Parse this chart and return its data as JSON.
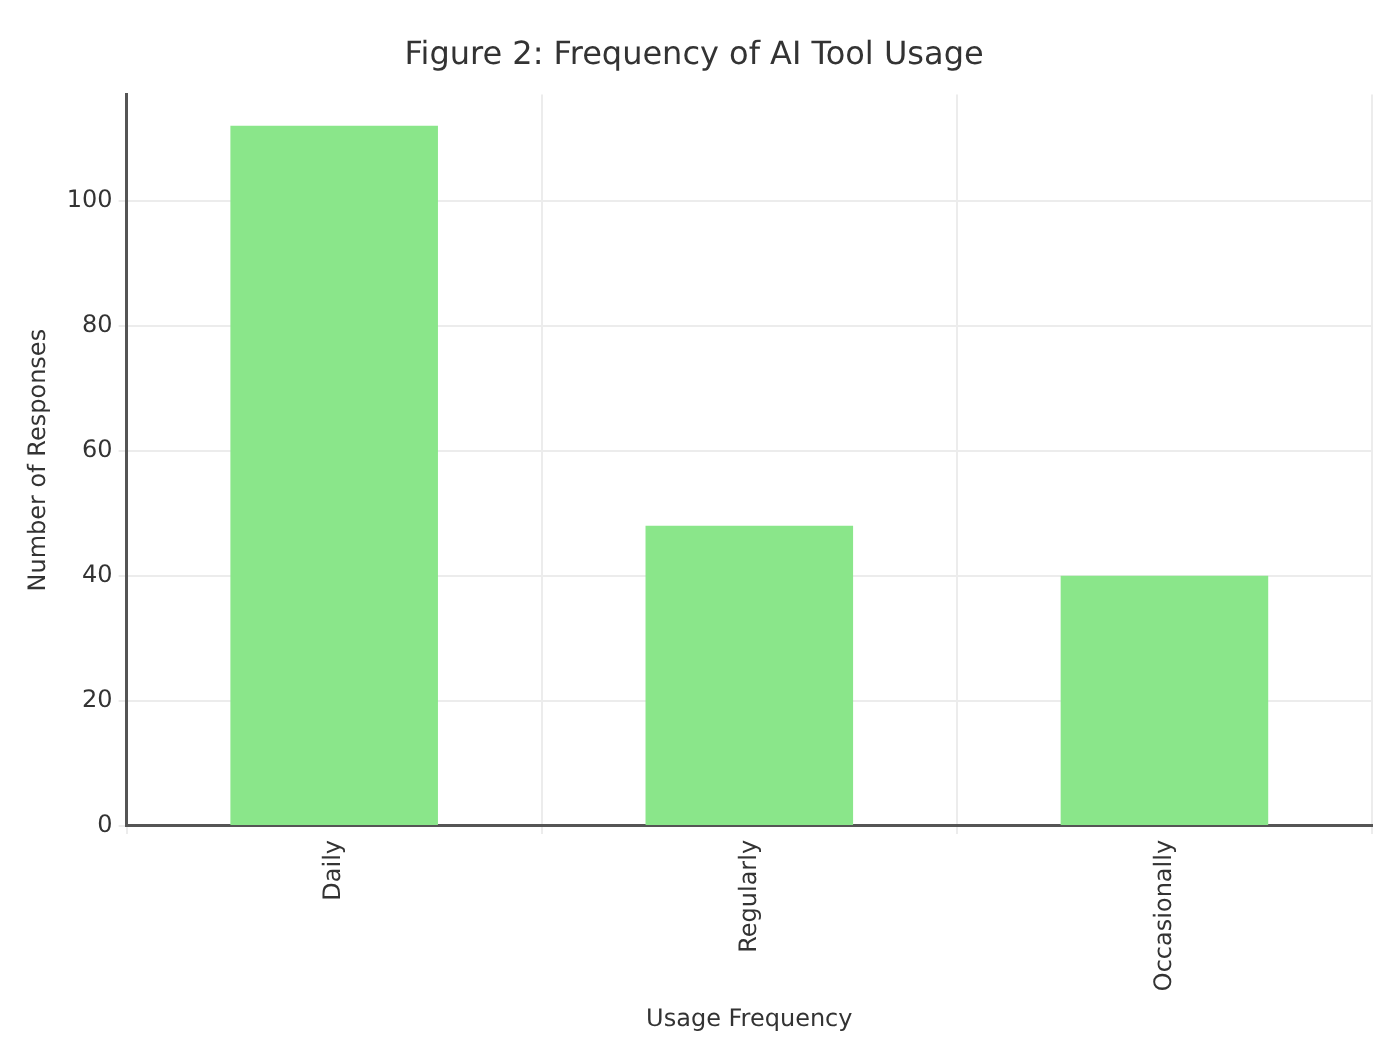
{
  "chart_data": {
    "type": "bar",
    "title": "Figure 2: Frequency of AI Tool Usage",
    "xlabel": "Usage Frequency",
    "ylabel": "Number of Responses",
    "categories": [
      "Daily",
      "Regularly",
      "Occasionally"
    ],
    "values": [
      112,
      48,
      40
    ],
    "color": "#8ae68a",
    "ylim": [
      0,
      117
    ],
    "yticks": [
      0,
      20,
      40,
      60,
      80,
      100
    ],
    "grid": true
  }
}
